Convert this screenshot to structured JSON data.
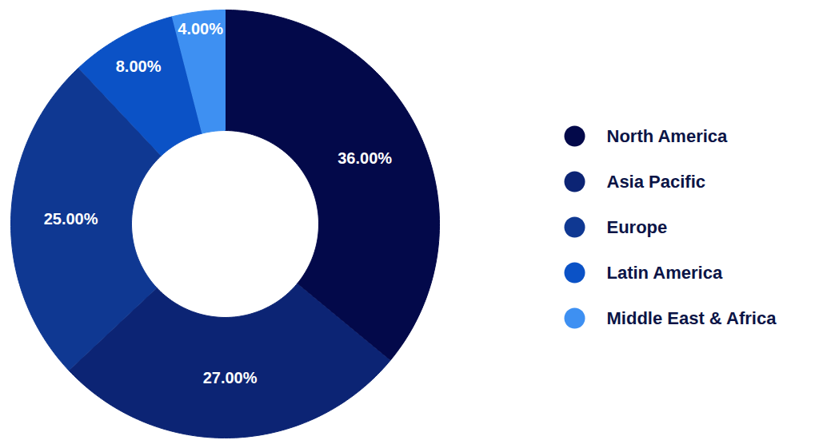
{
  "chart_data": {
    "type": "donut",
    "categories": [
      "North America",
      "Asia Pacific",
      "Europe",
      "Latin America",
      "Middle East & Africa"
    ],
    "values": [
      36,
      27,
      25,
      8,
      4
    ],
    "value_labels": [
      "36.00%",
      "27.00%",
      "25.00%",
      "8.00%",
      "4.00%"
    ],
    "colors": [
      "#03094a",
      "#0c2474",
      "#0f3892",
      "#0b52c6",
      "#3e90f2"
    ],
    "data_labels": true,
    "legend": "right"
  }
}
